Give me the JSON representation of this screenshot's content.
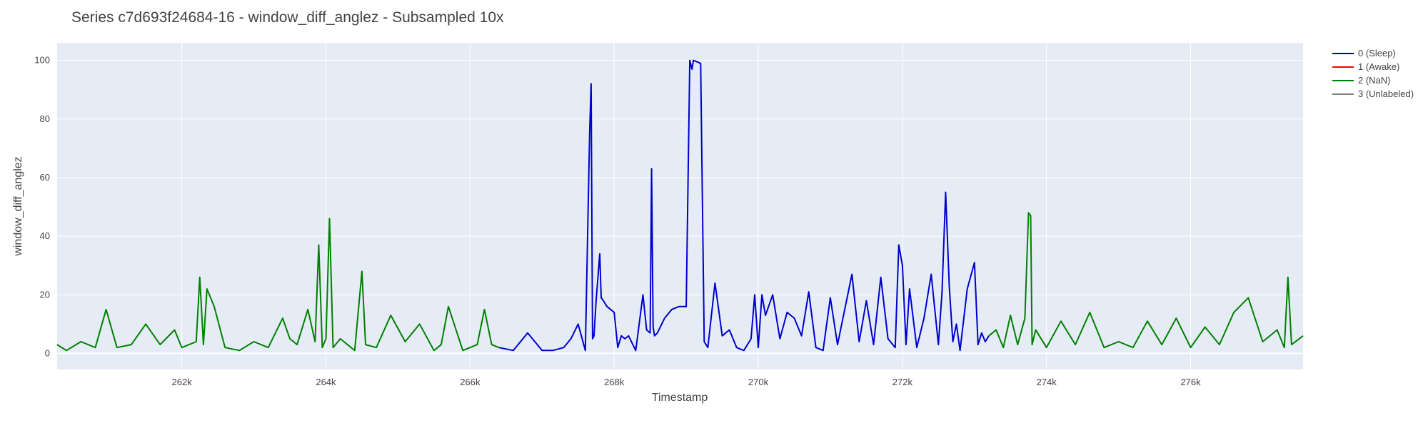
{
  "chart_data": {
    "type": "line",
    "title": "Series c7d693f24684-16 - window_diff_anglez - Subsampled 10x",
    "xlabel": "Timestamp",
    "ylabel": "window_diff_anglez",
    "xlim": [
      260270,
      277560
    ],
    "ylim": [
      -5.5,
      106
    ],
    "x_ticks": [
      262000,
      264000,
      266000,
      268000,
      270000,
      272000,
      274000,
      276000
    ],
    "x_tick_labels": [
      "262k",
      "264k",
      "266k",
      "268k",
      "270k",
      "272k",
      "274k",
      "276k"
    ],
    "y_ticks": [
      0,
      20,
      40,
      60,
      80,
      100
    ],
    "y_tick_labels": [
      "0",
      "20",
      "40",
      "60",
      "80",
      "100"
    ],
    "grid": true,
    "legend_position": "right",
    "colors": {
      "plot_bg": "#E5ECF6",
      "grid": "#FFFFFF"
    },
    "series": [
      {
        "name": "0 (Sleep)",
        "color": "#0000CD",
        "x": [
          266400,
          266600,
          266800,
          267000,
          267150,
          267300,
          267400,
          267500,
          267600,
          267660,
          267680,
          267700,
          267720,
          267750,
          267800,
          267820,
          267850,
          267900,
          268000,
          268050,
          268100,
          268150,
          268200,
          268300,
          268400,
          268450,
          268500,
          268520,
          268540,
          268560,
          268600,
          268700,
          268800,
          268900,
          269000,
          269050,
          269080,
          269100,
          269200,
          269250,
          269300,
          269400,
          269500,
          269600,
          269700,
          269800,
          269900,
          269950,
          270000,
          270050,
          270100,
          270200,
          270300,
          270400,
          270500,
          270600,
          270700,
          270800,
          270900,
          271000,
          271100,
          271200,
          271300,
          271400,
          271500,
          271600,
          271700,
          271800,
          271900,
          271950,
          272000,
          272050,
          272100,
          272200,
          272300,
          272400,
          272500,
          272550,
          272600,
          272650,
          272700,
          272750,
          272800,
          272900,
          273000,
          273050,
          273100,
          273150,
          273200
        ],
        "y": [
          2,
          1,
          7,
          1,
          1,
          2,
          5,
          10,
          1,
          75,
          92,
          5,
          6,
          18,
          34,
          19,
          18,
          16,
          14,
          2,
          6,
          5,
          6,
          1,
          20,
          8,
          7,
          63,
          9,
          6,
          7,
          12,
          15,
          16,
          16,
          100,
          97,
          100,
          99,
          4,
          2,
          24,
          6,
          8,
          2,
          1,
          5,
          20,
          2,
          20,
          13,
          20,
          5,
          14,
          12,
          6,
          21,
          2,
          1,
          19,
          3,
          15,
          27,
          4,
          18,
          3,
          26,
          5,
          2,
          37,
          30,
          3,
          22,
          2,
          12,
          27,
          3,
          21,
          55,
          23,
          4,
          10,
          1,
          22,
          31,
          3,
          7,
          4,
          6
        ]
      },
      {
        "name": "1 (Awake)",
        "color": "#FF0000",
        "x": [],
        "y": []
      },
      {
        "name": "2 (NaN)",
        "color": "#008000",
        "segments": [
          {
            "x": [
              260270,
              260400,
              260600,
              260800,
              260950,
              261100,
              261300,
              261500,
              261700,
              261900,
              262000,
              262200,
              262250,
              262300,
              262350,
              262450,
              262600,
              262800,
              263000,
              263200,
              263400,
              263500,
              263600,
              263750,
              263850,
              263900,
              263950,
              264000,
              264050,
              264100,
              264200,
              264400,
              264500,
              264550,
              264700,
              264900,
              265100,
              265300,
              265500,
              265600,
              265700,
              265900,
              266100,
              266200,
              266300,
              266400
            ],
            "y": [
              3,
              1,
              4,
              2,
              15,
              2,
              3,
              10,
              3,
              8,
              2,
              4,
              26,
              3,
              22,
              16,
              2,
              1,
              4,
              2,
              12,
              5,
              3,
              15,
              4,
              37,
              2,
              5,
              46,
              2,
              5,
              1,
              28,
              3,
              2,
              13,
              4,
              10,
              1,
              3,
              16,
              1,
              3,
              15,
              3,
              2
            ]
          },
          {
            "x": [
              273200,
              273300,
              273400,
              273500,
              273600,
              273700,
              273750,
              273780,
              273800,
              273850,
              274000,
              274200,
              274400,
              274600,
              274800,
              275000,
              275200,
              275400,
              275600,
              275800,
              276000,
              276200,
              276400,
              276600,
              276800,
              277000,
              277200,
              277300,
              277350,
              277400,
              277560
            ],
            "y": [
              6,
              8,
              2,
              13,
              3,
              12,
              48,
              47,
              3,
              8,
              2,
              11,
              3,
              14,
              2,
              4,
              2,
              11,
              3,
              12,
              2,
              9,
              3,
              14,
              19,
              4,
              8,
              2,
              26,
              3,
              6
            ]
          }
        ]
      },
      {
        "name": "3 (Unlabeled)",
        "color": "#808080",
        "x": [],
        "y": []
      }
    ]
  }
}
